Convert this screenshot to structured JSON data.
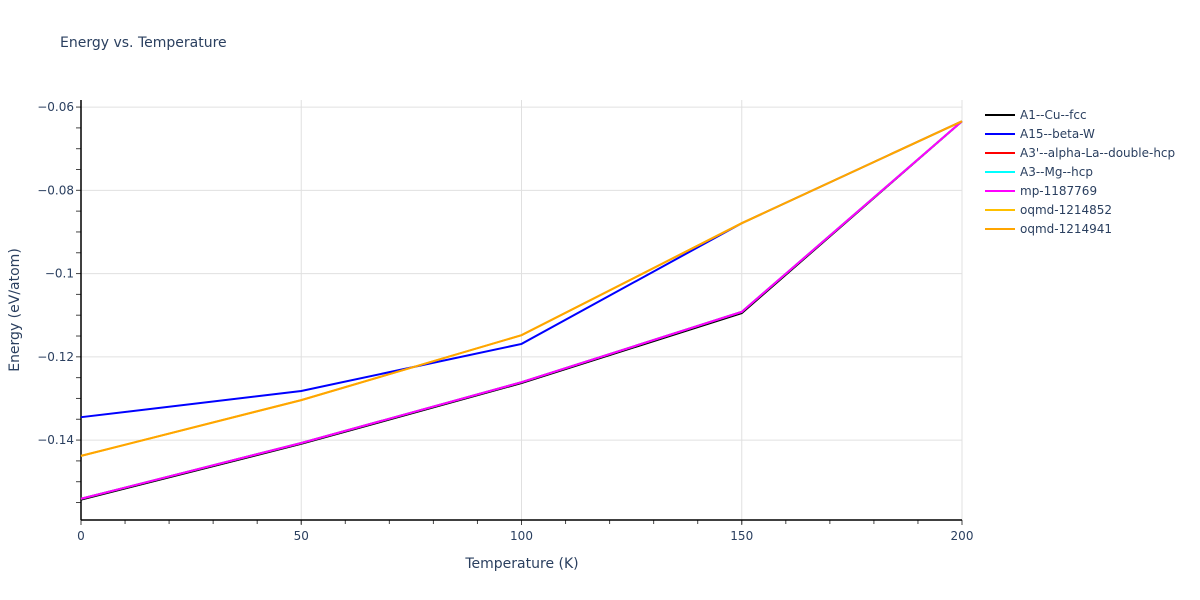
{
  "chart_data": {
    "type": "line",
    "title": "Energy vs. Temperature",
    "xlabel": "Temperature (K)",
    "ylabel": "Energy (eV/atom)",
    "xlim": [
      0,
      200
    ],
    "ylim": [
      -0.1592,
      -0.0583
    ],
    "x_ticks": [
      0,
      50,
      100,
      150,
      200
    ],
    "x_tick_labels": [
      "0",
      "50",
      "100",
      "150",
      "200"
    ],
    "y_ticks": [
      -0.14,
      -0.12,
      -0.1,
      -0.08,
      -0.06
    ],
    "y_tick_labels": [
      "−0.14",
      "−0.12",
      "−0.1",
      "−0.08",
      "−0.06"
    ],
    "grid": true,
    "legend_position": "right",
    "x": [
      0,
      50,
      100,
      150,
      200
    ],
    "series": [
      {
        "name": "A1--Cu--fcc",
        "color": "#000000",
        "values": [
          -0.1543,
          -0.1409,
          -0.1263,
          -0.1095,
          -0.0634
        ]
      },
      {
        "name": "A15--beta-W",
        "color": "#0000ff",
        "values": [
          -0.1345,
          -0.1282,
          -0.1169,
          -0.0879,
          -0.0634
        ]
      },
      {
        "name": "A3'--alpha-La--double-hcp",
        "color": "#ff0000",
        "values": [
          -0.1541,
          -0.1407,
          -0.1261,
          -0.1092,
          -0.0634
        ]
      },
      {
        "name": "A3--Mg--hcp",
        "color": "#00ffff",
        "values": [
          -0.1541,
          -0.1407,
          -0.1261,
          -0.1092,
          -0.0634
        ]
      },
      {
        "name": "mp-1187769",
        "color": "#ff00ff",
        "values": [
          -0.1541,
          -0.1407,
          -0.1261,
          -0.1092,
          -0.0634
        ]
      },
      {
        "name": "oqmd-1214852",
        "color": "#ffc000",
        "values": [
          -0.1438,
          -0.1304,
          -0.1148,
          -0.0879,
          -0.0634
        ]
      },
      {
        "name": "oqmd-1214941",
        "color": "#ffa500",
        "values": [
          -0.1438,
          -0.1304,
          -0.1148,
          -0.0879,
          -0.0634
        ]
      }
    ]
  }
}
